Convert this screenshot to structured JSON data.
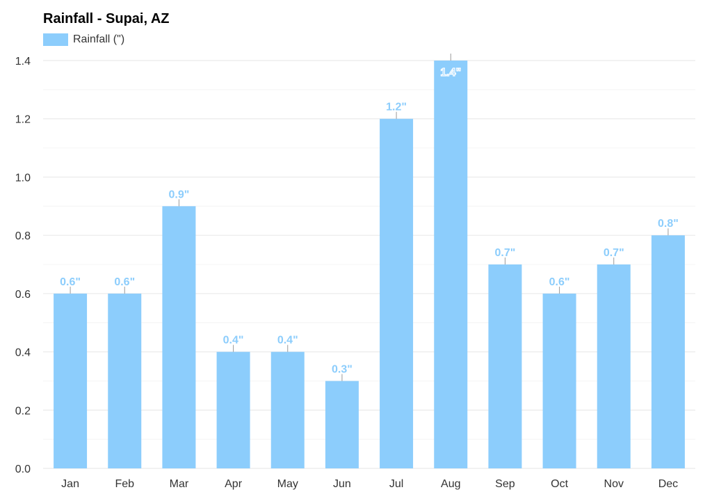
{
  "chart_data": {
    "type": "bar",
    "title": "Rainfall - Supai, AZ",
    "legend": [
      "Rainfall (\")"
    ],
    "legend_position": "top-left",
    "categories": [
      "Jan",
      "Feb",
      "Mar",
      "Apr",
      "May",
      "Jun",
      "Jul",
      "Aug",
      "Sep",
      "Oct",
      "Nov",
      "Dec"
    ],
    "series": [
      {
        "name": "Rainfall (\")",
        "values": [
          0.6,
          0.6,
          0.9,
          0.4,
          0.4,
          0.3,
          1.2,
          1.4,
          0.7,
          0.6,
          0.7,
          0.8
        ]
      }
    ],
    "data_labels": [
      "0.6\"",
      "0.6\"",
      "0.9\"",
      "0.4\"",
      "0.4\"",
      "0.3\"",
      "1.2\"",
      "1.4\"",
      "0.7\"",
      "0.6\"",
      "0.7\"",
      "0.8\""
    ],
    "yticks": [
      "0.0",
      "0.2",
      "0.4",
      "0.6",
      "0.8",
      "1.0",
      "1.2",
      "1.4"
    ],
    "ylim": [
      0,
      1.4
    ],
    "xlabel": "",
    "ylabel": "",
    "grid": true,
    "colors": {
      "bar": "#8ccdfc",
      "label": "#8ccdfc",
      "grid": "#e6e6e6"
    }
  }
}
